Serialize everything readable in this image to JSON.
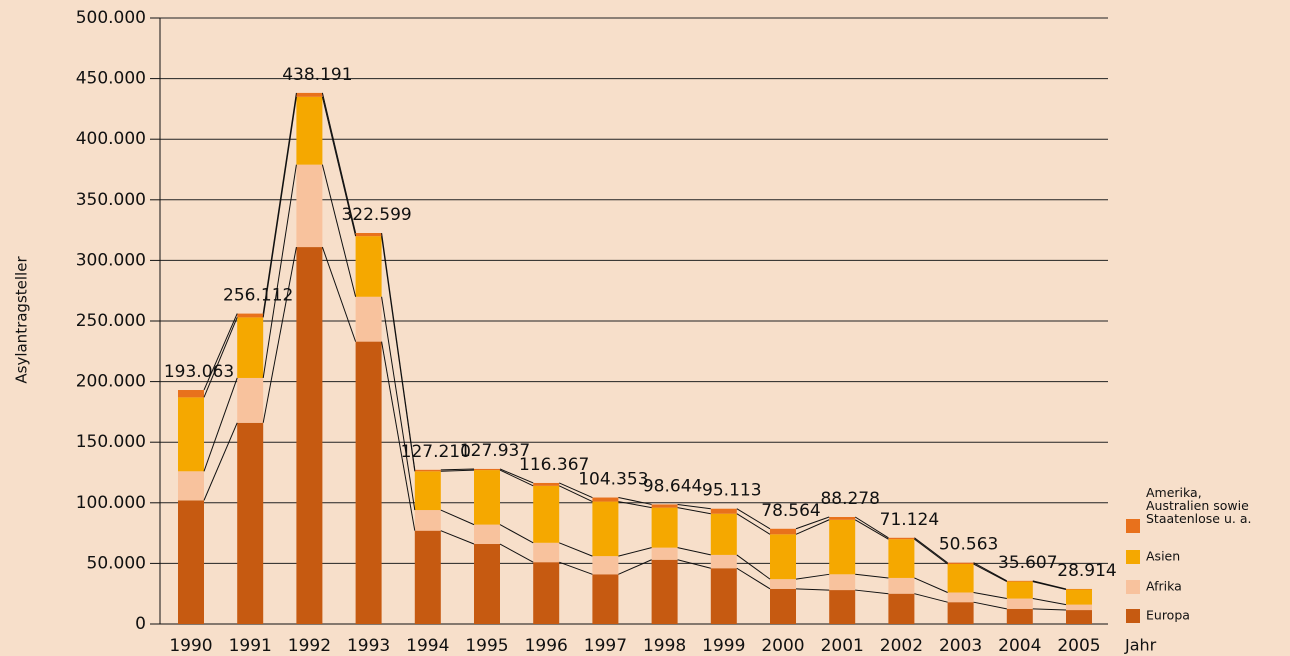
{
  "chart_data": {
    "type": "stacked_bar",
    "y_label": "Asylantragsteller",
    "x_label": "Jahr",
    "categories": [
      "1990",
      "1991",
      "1992",
      "1993",
      "1994",
      "1995",
      "1996",
      "1997",
      "1998",
      "1999",
      "2000",
      "2001",
      "2002",
      "2003",
      "2004",
      "2005"
    ],
    "series": [
      {
        "name": "Europa",
        "color": "#c65a11",
        "values": [
          102000,
          166000,
          311000,
          233000,
          77000,
          66000,
          51000,
          41000,
          53000,
          46000,
          29000,
          28000,
          25000,
          18000,
          12500,
          11500
        ]
      },
      {
        "name": "Afrika",
        "color": "#f8c29d",
        "values": [
          24000,
          37000,
          68000,
          37000,
          17000,
          16000,
          16000,
          15000,
          10000,
          11000,
          8000,
          13000,
          13000,
          8000,
          8500,
          4500
        ]
      },
      {
        "name": "Asien",
        "color": "#f5a800",
        "values": [
          61000,
          50000,
          56000,
          50000,
          32000,
          45000,
          47000,
          45000,
          33000,
          34000,
          37000,
          45000,
          32000,
          23500,
          14000,
          12500
        ]
      },
      {
        "name": "Amerika, Australien sowie Staatenlose u. a.",
        "color": "#e8711c",
        "values": [
          6063,
          3112,
          3191,
          2599,
          1210,
          937,
          2367,
          3353,
          2644,
          4113,
          4564,
          2278,
          1124,
          1063,
          607,
          414
        ]
      }
    ],
    "totals": [
      193063,
      256112,
      438191,
      322599,
      127210,
      127937,
      116367,
      104353,
      98644,
      95113,
      78564,
      88278,
      71124,
      50563,
      35607,
      28914
    ],
    "value_labels": [
      "193.063",
      "256.112",
      "438.191",
      "322.599",
      "127.210",
      "127.937",
      "116.367",
      "104.353",
      "98.644",
      "95.113",
      "78.564",
      "88.278",
      "71.124",
      "50.563",
      "35.607",
      "28.914"
    ],
    "ylim": [
      0,
      500000
    ],
    "yticks": [
      0,
      {
        "value": 50000,
        "label": "50.000"
      },
      {
        "value": 100000,
        "label": "100.000"
      },
      {
        "value": 150000,
        "label": "150.000"
      },
      {
        "value": 200000,
        "label": "200.000"
      },
      {
        "value": 250000,
        "label": "250.000"
      },
      {
        "value": 300000,
        "label": "300.000"
      },
      {
        "value": 350000,
        "label": "350.000"
      },
      {
        "value": 400000,
        "label": "400.000"
      },
      {
        "value": 450000,
        "label": "450.000"
      },
      {
        "value": 500000,
        "label": "500.000"
      }
    ],
    "grid": true
  }
}
